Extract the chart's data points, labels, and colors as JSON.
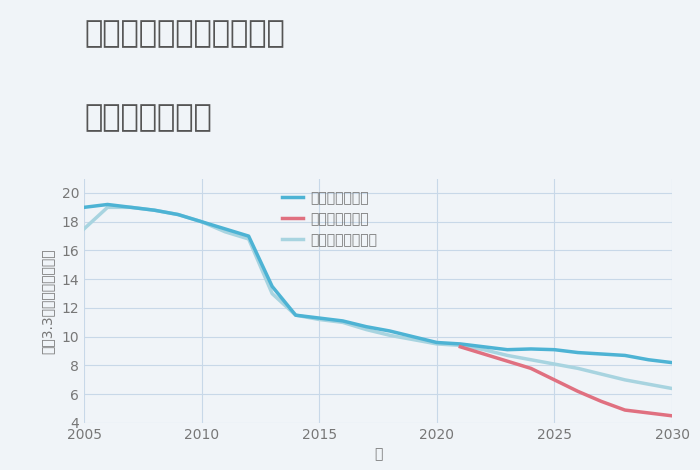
{
  "title_line1": "三重県伊賀市上野東町の",
  "title_line2": "土地の価格推移",
  "xlabel": "年",
  "ylabel": "坪（3.3㎡）単価（万円）",
  "background_color": "#f0f4f8",
  "plot_background": "#f0f4f8",
  "ylim": [
    4,
    21
  ],
  "xlim": [
    2005,
    2030
  ],
  "yticks": [
    4,
    6,
    8,
    10,
    12,
    14,
    16,
    18,
    20
  ],
  "xticks": [
    2005,
    2010,
    2015,
    2020,
    2025,
    2030
  ],
  "good_scenario": {
    "label": "グッドシナリオ",
    "color": "#4db3d4",
    "linewidth": 2.5,
    "x": [
      2005,
      2006,
      2007,
      2008,
      2009,
      2010,
      2011,
      2012,
      2013,
      2014,
      2015,
      2016,
      2017,
      2018,
      2019,
      2020,
      2021,
      2022,
      2023,
      2024,
      2025,
      2026,
      2027,
      2028,
      2029,
      2030
    ],
    "y": [
      19.0,
      19.2,
      19.0,
      18.8,
      18.5,
      18.0,
      17.5,
      17.0,
      13.5,
      11.5,
      11.3,
      11.1,
      10.7,
      10.4,
      10.0,
      9.6,
      9.5,
      9.3,
      9.1,
      9.15,
      9.1,
      8.9,
      8.8,
      8.7,
      8.4,
      8.2
    ]
  },
  "bad_scenario": {
    "label": "バッドシナリオ",
    "color": "#e07080",
    "linewidth": 2.5,
    "x": [
      2021,
      2022,
      2023,
      2024,
      2025,
      2026,
      2027,
      2028,
      2029,
      2030
    ],
    "y": [
      9.3,
      8.8,
      8.3,
      7.8,
      7.0,
      6.2,
      5.5,
      4.9,
      4.7,
      4.5
    ]
  },
  "normal_scenario": {
    "label": "ノーマルシナリオ",
    "color": "#a8d4e0",
    "linewidth": 2.5,
    "x": [
      2005,
      2006,
      2007,
      2008,
      2009,
      2010,
      2011,
      2012,
      2013,
      2014,
      2015,
      2016,
      2017,
      2018,
      2019,
      2020,
      2021,
      2022,
      2023,
      2024,
      2025,
      2026,
      2027,
      2028,
      2029,
      2030
    ],
    "y": [
      17.5,
      19.0,
      19.0,
      18.8,
      18.5,
      18.0,
      17.3,
      16.8,
      13.0,
      11.5,
      11.2,
      11.0,
      10.5,
      10.1,
      9.8,
      9.5,
      9.4,
      9.1,
      8.7,
      8.4,
      8.1,
      7.8,
      7.4,
      7.0,
      6.7,
      6.4
    ]
  },
  "legend_fontsize": 10,
  "title_fontsize": 22,
  "tick_fontsize": 10,
  "axis_label_fontsize": 10,
  "grid_color": "#c8d8e8",
  "tick_color": "#777777",
  "title_color": "#555555"
}
